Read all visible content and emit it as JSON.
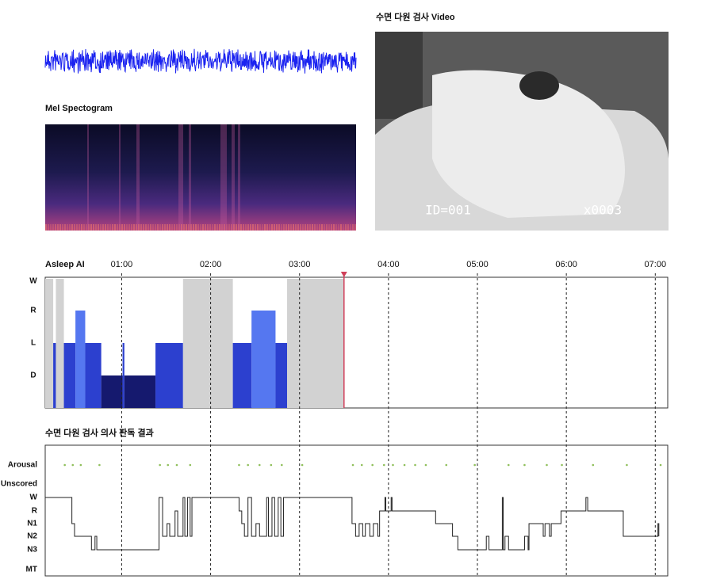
{
  "waveform_panel": {},
  "spectrogram": {
    "title": "Mel Spectogram"
  },
  "video": {
    "title": "수면 다원 검사 Video",
    "id_label": "ID=001",
    "speed_label": "x0003"
  },
  "chart_data": [
    {
      "type": "stage-bars",
      "title": "Asleep AI",
      "categories": [
        "W",
        "R",
        "L",
        "D"
      ],
      "stage_colors": [
        "#d2d2d2",
        "#5577f0",
        "#2c40cf",
        "#15196e"
      ],
      "xlim": [
        0.14,
        7.14
      ],
      "xticks": [
        {
          "value": 1,
          "label": "01:00"
        },
        {
          "value": 2,
          "label": "02:00"
        },
        {
          "value": 3,
          "label": "03:00"
        },
        {
          "value": 4,
          "label": "04:00"
        },
        {
          "value": 5,
          "label": "05:00"
        },
        {
          "value": 6,
          "label": "06:00"
        },
        {
          "value": 7,
          "label": "07:00"
        }
      ],
      "start": [
        0.14,
        0.23,
        0.26,
        0.35,
        0.48,
        0.59,
        0.77,
        1.01,
        1.03,
        1.38,
        1.69,
        2.25,
        2.46,
        2.73,
        2.86
      ],
      "end": [
        0.23,
        0.26,
        0.35,
        0.48,
        0.59,
        0.77,
        1.01,
        1.03,
        1.38,
        1.69,
        2.25,
        2.46,
        2.73,
        2.86,
        3.5
      ],
      "stages": [
        "W",
        "L",
        "W",
        "L",
        "R",
        "L",
        "D",
        "L",
        "D",
        "L",
        "W",
        "L",
        "R",
        "L",
        "W"
      ],
      "cursor": 3.5,
      "cursor_color": "#d0405a"
    },
    {
      "type": "step-line",
      "title": "수면 다원 검사 의사 판독 결과",
      "categories": [
        "Arousal",
        "Unscored",
        "W",
        "R",
        "N1",
        "N2",
        "N3",
        "MT"
      ],
      "xlim": [
        0.14,
        7.14
      ],
      "color": "#222",
      "arousal_color": "#8fbf5a",
      "x": [
        0.14,
        0.44,
        0.47,
        0.66,
        0.7,
        0.72,
        1.42,
        1.46,
        1.51,
        1.54,
        1.6,
        1.63,
        1.69,
        1.71,
        1.74,
        1.77,
        1.79,
        2.32,
        2.35,
        2.38,
        2.42,
        2.46,
        2.51,
        2.55,
        2.63,
        2.65,
        2.69,
        2.72,
        2.76,
        2.79,
        2.82,
        3.59,
        3.63,
        3.67,
        3.71,
        3.74,
        3.79,
        3.83,
        3.88,
        3.9,
        3.96,
        3.97,
        4.03,
        4.04,
        4.53,
        4.72,
        4.78,
        5.1,
        5.13,
        5.28,
        5.29,
        5.31,
        5.35,
        5.53,
        5.57,
        5.58,
        5.74,
        5.76,
        5.81,
        5.83,
        5.94,
        6.22,
        6.24,
        6.64,
        7.03,
        7.04
      ],
      "stages": [
        "W",
        "N1",
        "N2",
        "N3",
        "N2",
        "N3",
        "W",
        "N2",
        "N1",
        "N2",
        "R",
        "N2",
        "W",
        "N2",
        "W",
        "N2",
        "W",
        "R",
        "N1",
        "N2",
        "W",
        "N2",
        "N1",
        "N2",
        "W",
        "N2",
        "W",
        "N2",
        "W",
        "N2",
        "W",
        "N1",
        "N2",
        "N1",
        "N2",
        "N1",
        "N2",
        "N1",
        "N2",
        "R",
        "W",
        "R",
        "W",
        "R",
        "N1",
        "N2",
        "N3",
        "N2",
        "N3",
        "W",
        "N3",
        "N2",
        "N3",
        "N2",
        "N3",
        "N1",
        "N2",
        "N1",
        "N2",
        "N1",
        "R",
        "W",
        "R",
        "N2",
        "N1",
        "N2"
      ],
      "arousal_x": [
        0.36,
        0.45,
        0.54,
        0.75,
        1.43,
        1.52,
        1.62,
        1.77,
        2.32,
        2.42,
        2.55,
        2.68,
        2.8,
        3.03,
        3.6,
        3.7,
        3.82,
        3.95,
        4.05,
        4.18,
        4.3,
        4.42,
        4.65,
        4.97,
        5.35,
        5.53,
        5.78,
        5.95,
        6.3,
        6.68,
        7.06
      ]
    }
  ]
}
